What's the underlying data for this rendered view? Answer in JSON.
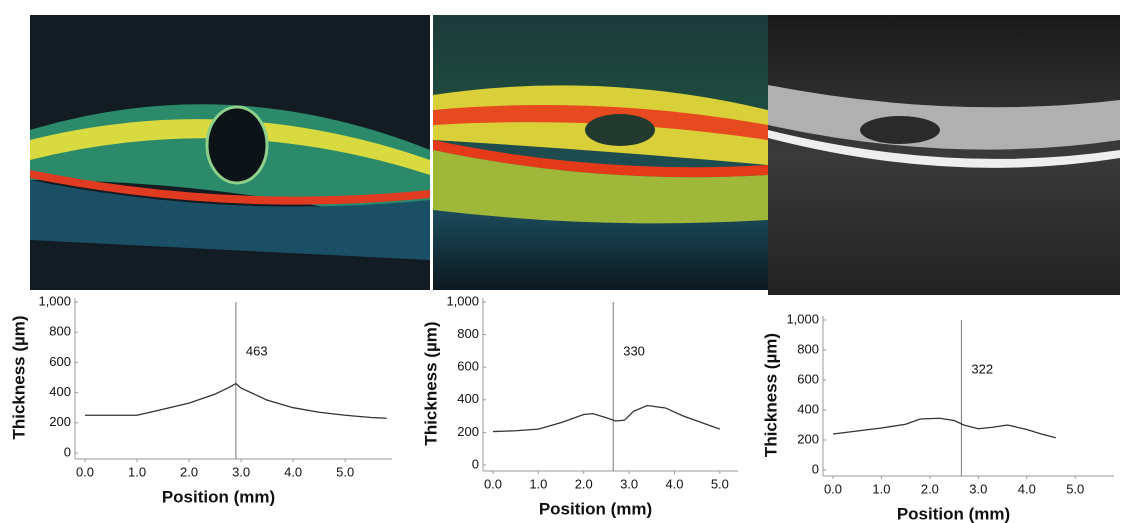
{
  "chart_data": [
    {
      "type": "line",
      "x_label": "Position (mm)",
      "y_label": "Thickness (µm)",
      "x": [
        0.0,
        0.5,
        1.0,
        1.5,
        2.0,
        2.5,
        2.8,
        2.9,
        3.0,
        3.5,
        4.0,
        4.5,
        5.0,
        5.5,
        5.8
      ],
      "values": [
        250,
        250,
        250,
        290,
        330,
        390,
        440,
        460,
        430,
        350,
        300,
        270,
        250,
        235,
        230
      ],
      "color": "#333333",
      "annotations": [
        {
          "x": 2.9,
          "text": "463"
        }
      ],
      "xlim": [
        0,
        5.9
      ],
      "ylim": [
        0,
        1000
      ],
      "xticks": [
        {
          "value": 0,
          "label": "0.0"
        },
        {
          "value": 1,
          "label": "1.0"
        },
        {
          "value": 2,
          "label": "2.0"
        },
        {
          "value": 3,
          "label": "3.0"
        },
        {
          "value": 4,
          "label": "4.0"
        },
        {
          "value": 5,
          "label": "5.0"
        }
      ],
      "yticks": [
        0,
        200,
        400,
        600,
        800,
        {
          "value": 1000,
          "label": "1,000"
        }
      ]
    },
    {
      "type": "line",
      "x_label": "Position (mm)",
      "y_label": "Thickness (µm)",
      "x": [
        0.0,
        0.5,
        1.0,
        1.5,
        2.0,
        2.2,
        2.5,
        2.7,
        2.9,
        3.1,
        3.4,
        3.8,
        4.2,
        4.6,
        5.0
      ],
      "values": [
        205,
        210,
        220,
        260,
        310,
        315,
        290,
        270,
        275,
        330,
        365,
        350,
        300,
        260,
        220
      ],
      "color": "#333333",
      "annotations": [
        {
          "x": 2.65,
          "text": "330"
        }
      ],
      "xlim": [
        0,
        5.4
      ],
      "ylim": [
        0,
        1000
      ],
      "xticks": [
        {
          "value": 0,
          "label": "0.0"
        },
        {
          "value": 1,
          "label": "1.0"
        },
        {
          "value": 2,
          "label": "2.0"
        },
        {
          "value": 3,
          "label": "3.0"
        },
        {
          "value": 4,
          "label": "4.0"
        },
        {
          "value": 5,
          "label": "5.0"
        }
      ],
      "yticks": [
        0,
        200,
        400,
        600,
        800,
        {
          "value": 1000,
          "label": "1,000"
        }
      ]
    },
    {
      "type": "line",
      "x_label": "Position (mm)",
      "y_label": "Thickness (µm)",
      "x": [
        0.0,
        0.5,
        1.0,
        1.5,
        1.8,
        2.2,
        2.5,
        2.7,
        3.0,
        3.3,
        3.6,
        4.0,
        4.3,
        4.6
      ],
      "values": [
        240,
        260,
        280,
        305,
        340,
        345,
        330,
        300,
        275,
        285,
        300,
        270,
        240,
        215
      ],
      "color": "#333333",
      "annotations": [
        {
          "x": 2.65,
          "text": "322"
        }
      ],
      "xlim": [
        0,
        5.8
      ],
      "ylim": [
        0,
        1000
      ],
      "xticks": [
        {
          "value": 0,
          "label": "0.0"
        },
        {
          "value": 1,
          "label": "1.0"
        },
        {
          "value": 2,
          "label": "2.0"
        },
        {
          "value": 3,
          "label": "3.0"
        },
        {
          "value": 4,
          "label": "4.0"
        },
        {
          "value": 5,
          "label": "5.0"
        }
      ],
      "yticks": [
        0,
        200,
        400,
        600,
        800,
        {
          "value": 1000,
          "label": "1,000"
        }
      ]
    }
  ]
}
